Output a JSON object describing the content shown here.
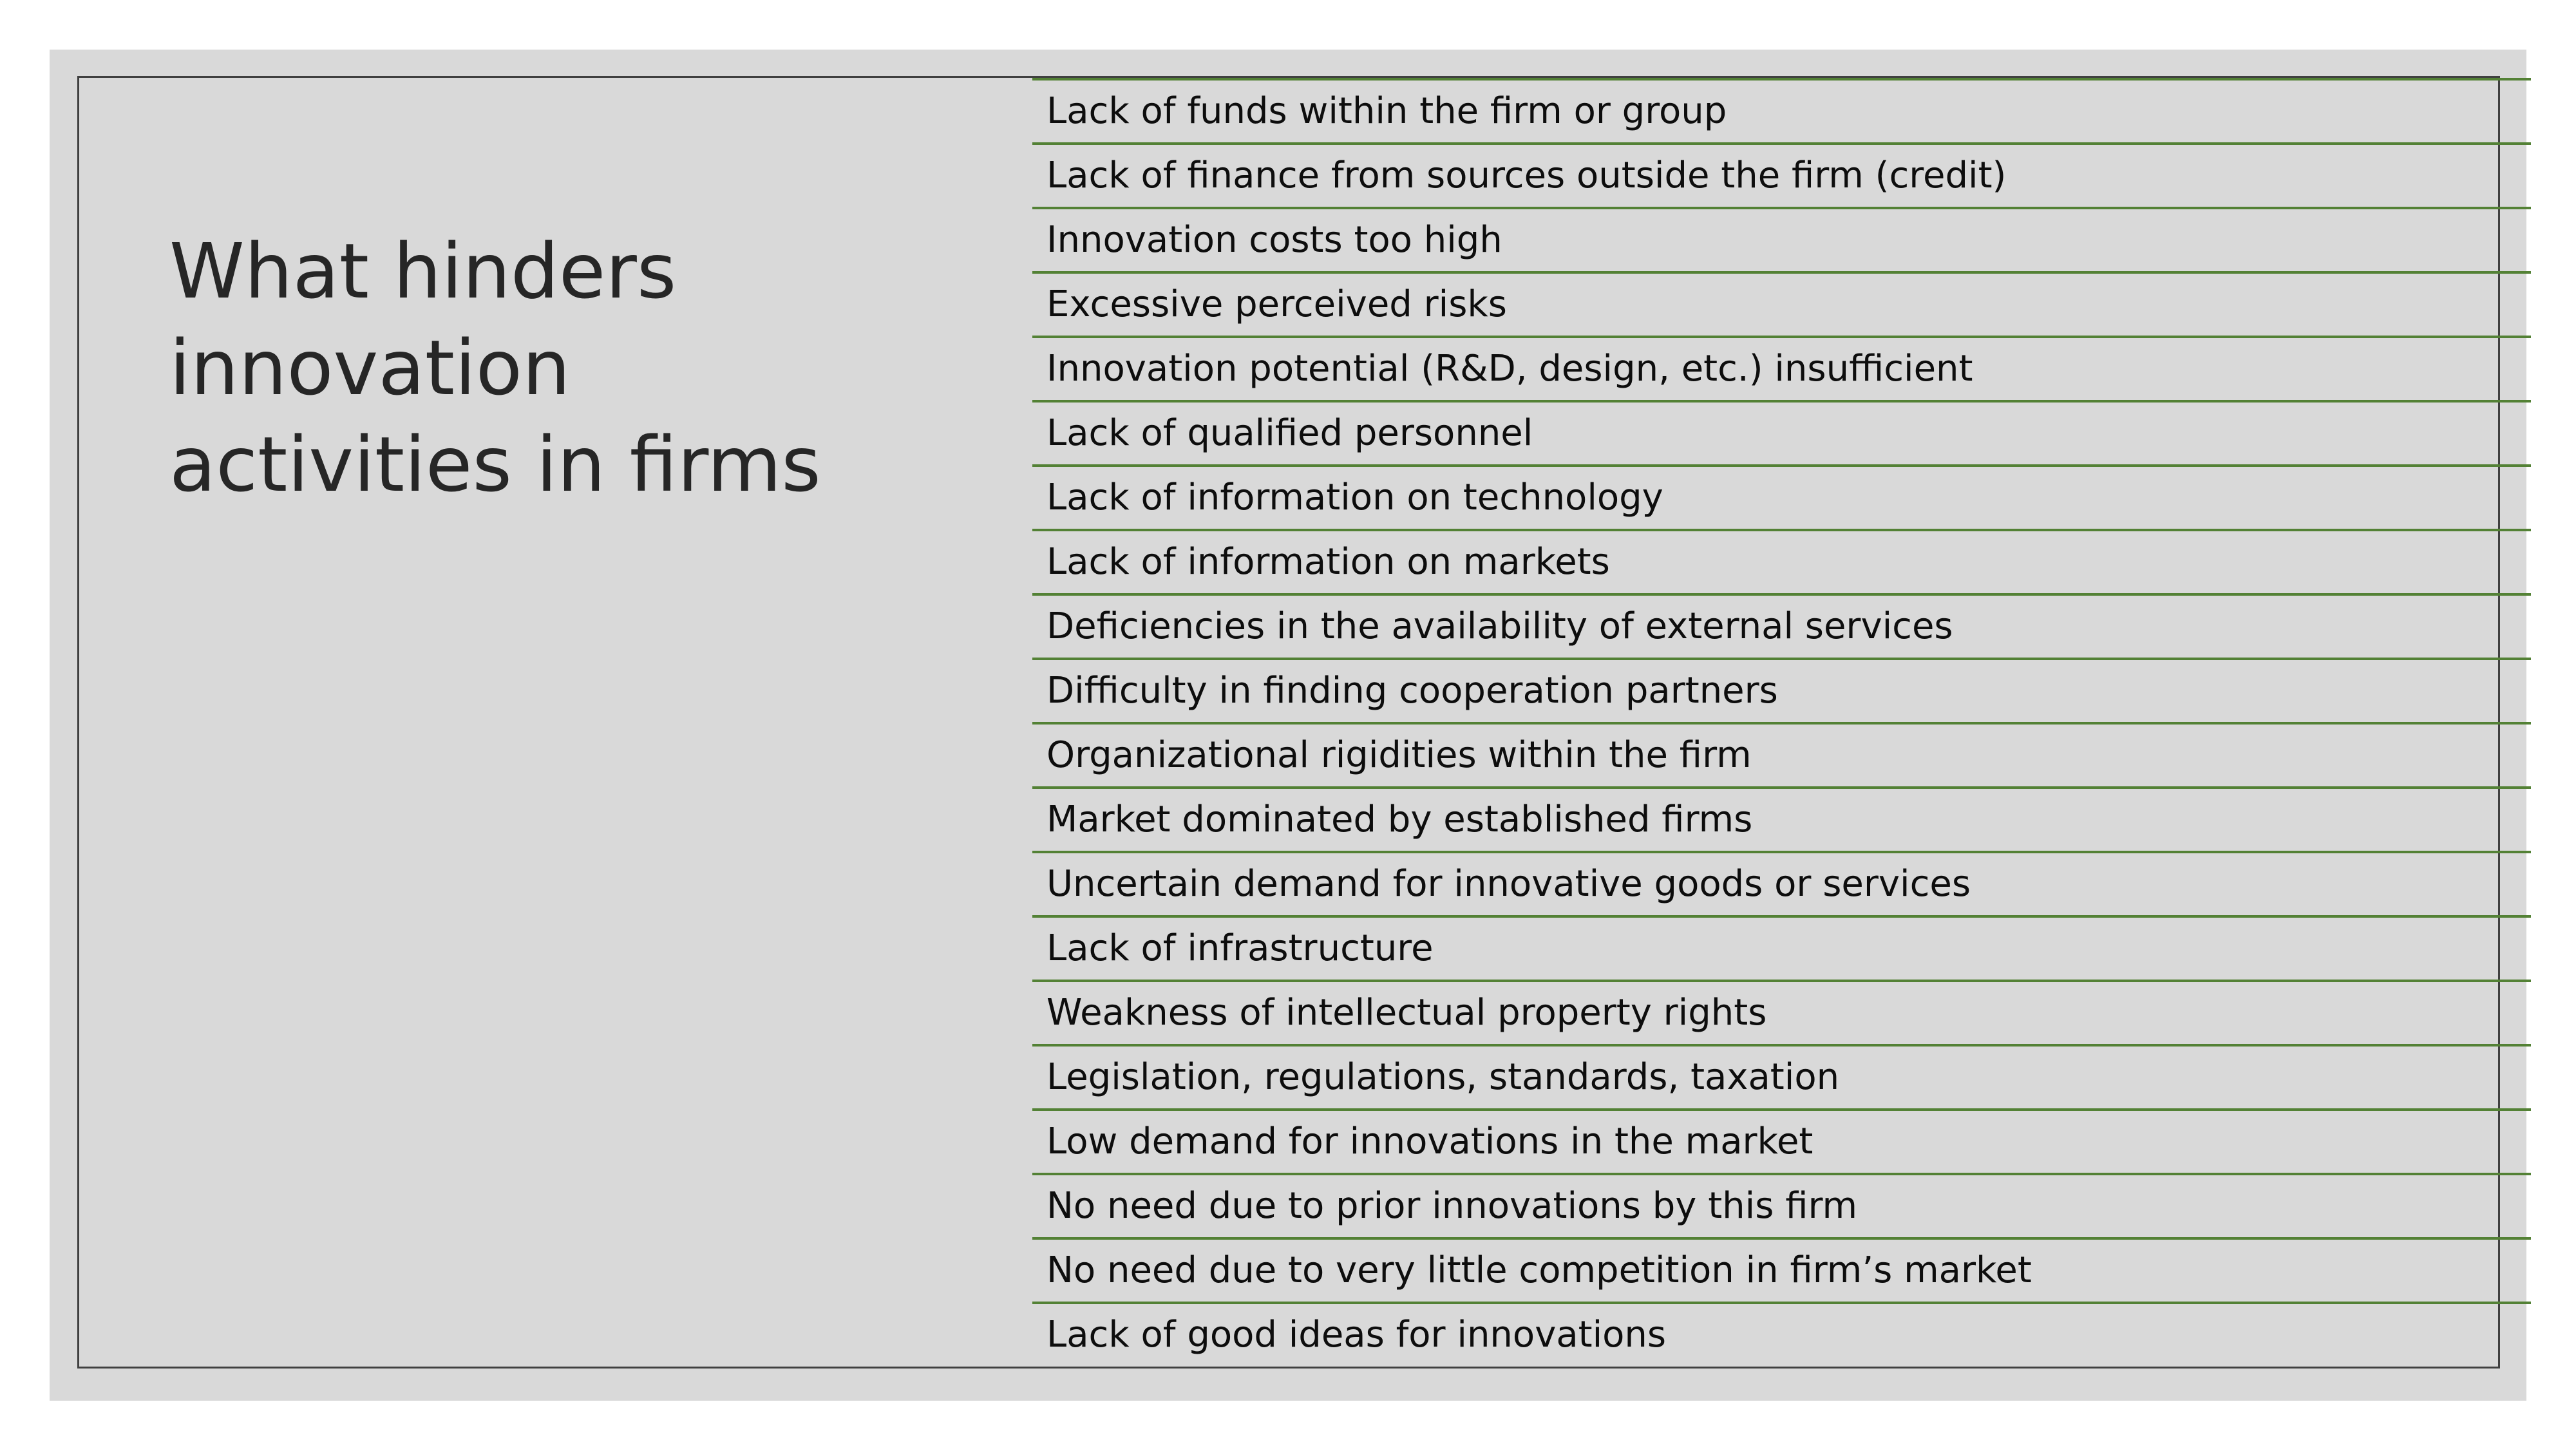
{
  "slide": {
    "title": "What hinders innovation activities in firms",
    "obstacles": [
      "Lack of funds within the firm or group",
      "Lack of finance from sources outside the firm (credit)",
      "Innovation costs too high",
      "Excessive perceived risks",
      "Innovation potential (R&D, design, etc.) insufficient",
      "Lack of qualified personnel",
      "Lack of information on technology",
      "Lack of information on markets",
      "Deficiencies in the availability of external services",
      "Difficulty in finding cooperation partners",
      "Organizational rigidities within the firm",
      "Market dominated by established firms",
      "Uncertain demand for innovative goods or services",
      "Lack of infrastructure",
      "Weakness of intellectual property rights",
      "Legislation, regulations, standards, taxation",
      "Low demand for innovations in the market",
      "No need due to prior innovations by this firm",
      "No need due to very little competition in firm’s market",
      "Lack of good ideas for innovations"
    ]
  },
  "colors": {
    "background": "#d9d9d9",
    "frame": "#404040",
    "row_rule": "#538135",
    "title_text": "#262626"
  }
}
